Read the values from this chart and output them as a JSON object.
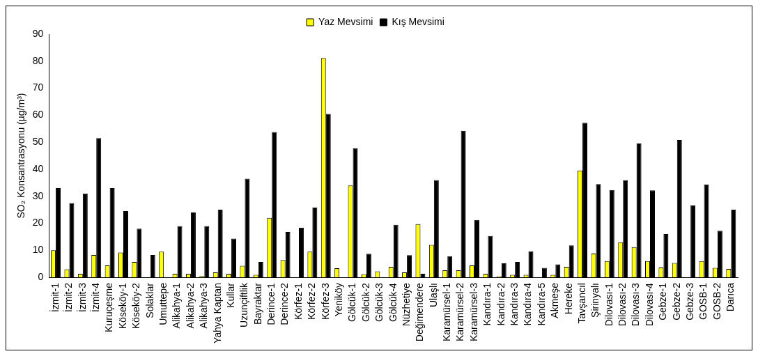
{
  "chart_data": {
    "type": "bar",
    "ylabel": "SO₂ Konsantrasyonu (µg/m³)",
    "categories": [
      "İzmit-1",
      "İzmit-2",
      "İzmit-3",
      "İzmit-4",
      "Kuruçeşme",
      "Köseköy-1",
      "Köseköy-2",
      "Solaklar",
      "Umuttepe",
      "Alikahya-1",
      "Alikahya-2",
      "Alikahya-3",
      "Yahya Kaptan",
      "Kullar",
      "Uzunçiftlik",
      "Bayraktar",
      "Derince-1",
      "Derince-2",
      "Körfez-1",
      "Körfez-2",
      "Körfez-3",
      "Yeniköy",
      "Gölcük-1",
      "Gölcük-2",
      "Gölcük-3",
      "Gölcük-4",
      "Nüzhetiye",
      "Değimendere",
      "Ulaşlı",
      "Karamürsel-1",
      "Karamürsel-2",
      "Karamürsel-3",
      "Kandıra-1",
      "Kandıra-2",
      "Kandıra-3",
      "Kandıra-4",
      "Kandıra-5",
      "Akmeşe",
      "Hereke",
      "Tavşancıl",
      "Şirinyalı",
      "Dilovası-1",
      "Dilovası-2",
      "Dilovası-3",
      "Dilovası-4",
      "Gebze-1",
      "Gebze-2",
      "Gebze-3",
      "GOSB-1",
      "GOSB-2",
      "Darıca"
    ],
    "series": [
      {
        "name": "Yaz Mevsimi",
        "color": "#ffff00",
        "values": [
          10,
          3,
          1.3,
          8.3,
          4.4,
          9.2,
          5.7,
          null,
          9.5,
          1.3,
          1.3,
          0.5,
          1.8,
          1.3,
          4.3,
          0.9,
          22,
          6.4,
          null,
          9.5,
          81.2,
          3.4,
          34,
          1.2,
          2.2,
          3.9,
          1.8,
          19.7,
          12,
          2.6,
          2.6,
          4.4,
          1.3,
          0.4,
          0.9,
          0.9,
          null,
          0.9,
          3.9,
          39.5,
          8.8,
          6,
          13,
          11.2,
          6,
          3.6,
          5.3,
          null,
          6,
          3.5,
          3.1
        ]
      },
      {
        "name": "Kış Mevsimi",
        "color": "#000000",
        "values": [
          33,
          27.5,
          31,
          51.5,
          33,
          24.5,
          18,
          8.3,
          null,
          19,
          24,
          19,
          25,
          14.3,
          36.5,
          5.7,
          53.8,
          16.8,
          18.4,
          25.8,
          60.5,
          null,
          47.8,
          8.7,
          null,
          19.4,
          8.2,
          1.3,
          36,
          7.8,
          54.2,
          21.2,
          15.3,
          5.2,
          5.7,
          9.6,
          3.5,
          4.8,
          11.8,
          57.2,
          34.5,
          32.3,
          36,
          49.5,
          32.2,
          16,
          50.8,
          26.7,
          34.4,
          17.2,
          25
        ]
      }
    ],
    "ylim": [
      0,
      90
    ],
    "yticks": [
      0,
      10,
      20,
      30,
      40,
      50,
      60,
      70,
      80,
      90
    ],
    "legend": "top"
  }
}
